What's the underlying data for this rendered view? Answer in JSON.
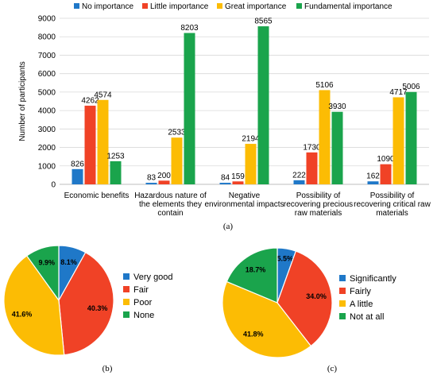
{
  "chart_data": [
    {
      "type": "bar",
      "caption": "(a)",
      "ylabel": "Number of participants",
      "ylim": [
        0,
        9000
      ],
      "yticks": [
        "0",
        "1000",
        "2000",
        "3000",
        "4000",
        "5000",
        "6000",
        "7000",
        "8000",
        "9000"
      ],
      "categories": [
        [
          "Economic benefits"
        ],
        [
          "Hazardous nature of",
          "the elements they",
          "contain"
        ],
        [
          "Negative",
          "environmental impacts"
        ],
        [
          "Possibility of",
          "recovering precious",
          "raw materials"
        ],
        [
          "Possibility of",
          "recovering critical raw",
          "materials"
        ]
      ],
      "legend_position": "top",
      "series": [
        {
          "name": "No importance",
          "color": "#1f78c8",
          "values": [
            826,
            83,
            84,
            222,
            162
          ]
        },
        {
          "name": "Little importance",
          "color": "#f04226",
          "values": [
            4262,
            200,
            159,
            1730,
            1090
          ]
        },
        {
          "name": "Great importance",
          "color": "#fcbc04",
          "values": [
            4574,
            2533,
            2194,
            5106,
            4717
          ]
        },
        {
          "name": "Fundamental importance",
          "color": "#1aa44c",
          "values": [
            1253,
            8203,
            8565,
            3930,
            5006
          ]
        }
      ],
      "labels": [
        [
          "826",
          "83",
          "84",
          "222",
          "162"
        ],
        [
          "4262",
          "200",
          "159",
          "1730",
          "1090"
        ],
        [
          "4574",
          "2533",
          "2194",
          "5106",
          "4717"
        ],
        [
          "1253",
          "8203",
          "8565",
          "3930",
          "5006"
        ]
      ],
      "grid": true
    },
    {
      "type": "pie",
      "caption": "(b)",
      "legend_position": "right",
      "slices": [
        {
          "name": "Very good",
          "value": 8.1,
          "label": "8.1%",
          "color": "#1f78c8"
        },
        {
          "name": "Fair",
          "value": 40.3,
          "label": "40.3%",
          "color": "#f04226"
        },
        {
          "name": "Poor",
          "value": 41.6,
          "label": "41.6%",
          "color": "#fcbc04"
        },
        {
          "name": "None",
          "value": 9.9,
          "label": "9.9%",
          "color": "#1aa44c"
        }
      ]
    },
    {
      "type": "pie",
      "caption": "(c)",
      "legend_position": "right",
      "slices": [
        {
          "name": "Significantly",
          "value": 5.5,
          "label": "5.5%",
          "color": "#1f78c8"
        },
        {
          "name": "Fairly",
          "value": 34.0,
          "label": "34.0%",
          "color": "#f04226"
        },
        {
          "name": "A little",
          "value": 41.8,
          "label": "41.8%",
          "color": "#fcbc04"
        },
        {
          "name": "Not at all",
          "value": 18.7,
          "label": "18.7%",
          "color": "#1aa44c"
        }
      ]
    }
  ]
}
